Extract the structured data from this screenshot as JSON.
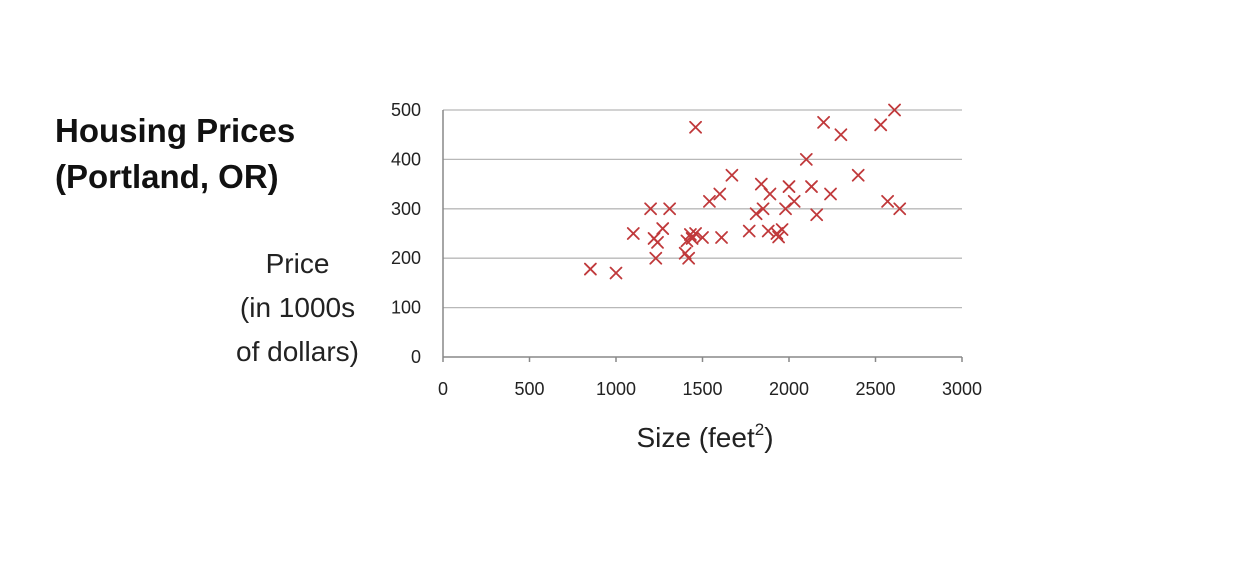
{
  "slide": {
    "title_line1": "Housing Prices",
    "title_line2": "(Portland, OR)"
  },
  "chart_data": {
    "type": "scatter",
    "xlabel": "Size (feet",
    "xlabel_sup": "2",
    "xlabel_close": ")",
    "ylabel_lines": [
      "Price",
      "(in 1000s",
      "of dollars)"
    ],
    "xlim": [
      0,
      3000
    ],
    "ylim": [
      0,
      500
    ],
    "xticks": [
      0,
      500,
      1000,
      1500,
      2000,
      2500,
      3000
    ],
    "yticks": [
      0,
      100,
      200,
      300,
      400,
      500
    ],
    "grid": "horizontal",
    "marker": "x",
    "color": "#c0393b",
    "x": [
      852,
      1000,
      1100,
      1200,
      1220,
      1230,
      1240,
      1270,
      1310,
      1400,
      1410,
      1420,
      1430,
      1440,
      1460,
      1460,
      1500,
      1540,
      1600,
      1610,
      1670,
      1770,
      1810,
      1840,
      1850,
      1880,
      1890,
      1930,
      1940,
      1960,
      1980,
      2000,
      2030,
      2100,
      2130,
      2160,
      2200,
      2240,
      2300,
      2400,
      2530,
      2570,
      2610,
      2640
    ],
    "y": [
      178,
      170,
      250,
      300,
      240,
      200,
      232,
      260,
      300,
      210,
      235,
      200,
      248,
      240,
      250,
      465,
      242,
      315,
      330,
      242,
      368,
      255,
      290,
      350,
      300,
      255,
      330,
      250,
      243,
      258,
      300,
      345,
      315,
      400,
      345,
      288,
      475,
      330,
      450,
      368,
      470,
      315,
      500,
      300
    ]
  }
}
